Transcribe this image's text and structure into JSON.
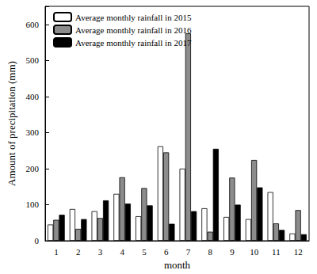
{
  "chart_data": {
    "type": "bar",
    "categories": [
      "1",
      "2",
      "3",
      "4",
      "5",
      "6",
      "7",
      "8",
      "9",
      "10",
      "11",
      "12"
    ],
    "series": [
      {
        "name": "Average monthly rainfall in 2015",
        "color": "#ffffff",
        "values": [
          45,
          88,
          82,
          130,
          68,
          262,
          200,
          90,
          66,
          60,
          135,
          20
        ]
      },
      {
        "name": "Average monthly rainfall in 2016",
        "color": "#8c8c8c",
        "values": [
          58,
          33,
          63,
          176,
          146,
          245,
          575,
          25,
          175,
          224,
          48,
          85
        ]
      },
      {
        "name": "Average monthly rainfall in 2017",
        "color": "#000000",
        "values": [
          72,
          60,
          112,
          103,
          98,
          47,
          82,
          255,
          100,
          148,
          30,
          18
        ]
      }
    ],
    "x_label": "month",
    "y_label": "Amount of precipitation (mm)",
    "ylim": [
      0,
      650
    ],
    "yticks": [
      0,
      100,
      200,
      300,
      400,
      500,
      600
    ],
    "grid": false,
    "legend": "upper left"
  }
}
